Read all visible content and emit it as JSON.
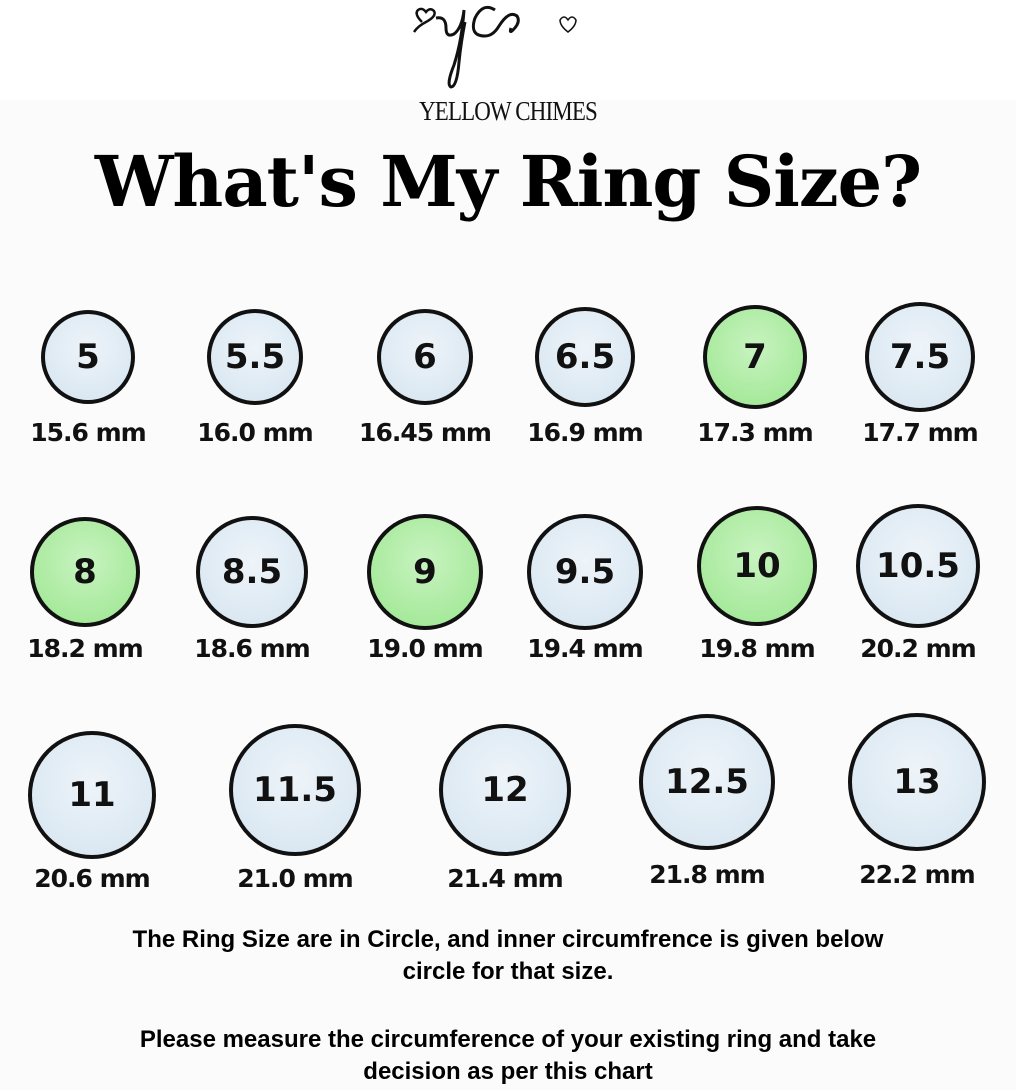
{
  "brand": {
    "logo_text": "yc",
    "name": "YELLOW CHIMES"
  },
  "title": "What's My Ring Size?",
  "colors": {
    "standard_fill": "#dde9f3",
    "highlight_fill": "#a8eaa0",
    "outline": "#111111"
  },
  "sizes": [
    {
      "size": "5",
      "mm": "15.6 mm",
      "highlight": false
    },
    {
      "size": "5.5",
      "mm": "16.0 mm",
      "highlight": false
    },
    {
      "size": "6",
      "mm": "16.45 mm",
      "highlight": false
    },
    {
      "size": "6.5",
      "mm": "16.9 mm",
      "highlight": false
    },
    {
      "size": "7",
      "mm": "17.3 mm",
      "highlight": true
    },
    {
      "size": "7.5",
      "mm": "17.7 mm",
      "highlight": false
    },
    {
      "size": "8",
      "mm": "18.2 mm",
      "highlight": true
    },
    {
      "size": "8.5",
      "mm": "18.6 mm",
      "highlight": false
    },
    {
      "size": "9",
      "mm": "19.0 mm",
      "highlight": true
    },
    {
      "size": "9.5",
      "mm": "19.4 mm",
      "highlight": false
    },
    {
      "size": "10",
      "mm": "19.8 mm",
      "highlight": true
    },
    {
      "size": "10.5",
      "mm": "20.2 mm",
      "highlight": false
    },
    {
      "size": "11",
      "mm": "20.6 mm",
      "highlight": false
    },
    {
      "size": "11.5",
      "mm": "21.0 mm",
      "highlight": false
    },
    {
      "size": "12",
      "mm": "21.4 mm",
      "highlight": false
    },
    {
      "size": "12.5",
      "mm": "21.8 mm",
      "highlight": false
    },
    {
      "size": "13",
      "mm": "22.2 mm",
      "highlight": false
    }
  ],
  "notes": {
    "line1": "The Ring Size are in Circle, and inner circumfrence is  given below",
    "line2": "circle for that size.",
    "line3": "Please measure the circumference of your existing ring and take",
    "line4": "decision as per this chart"
  }
}
